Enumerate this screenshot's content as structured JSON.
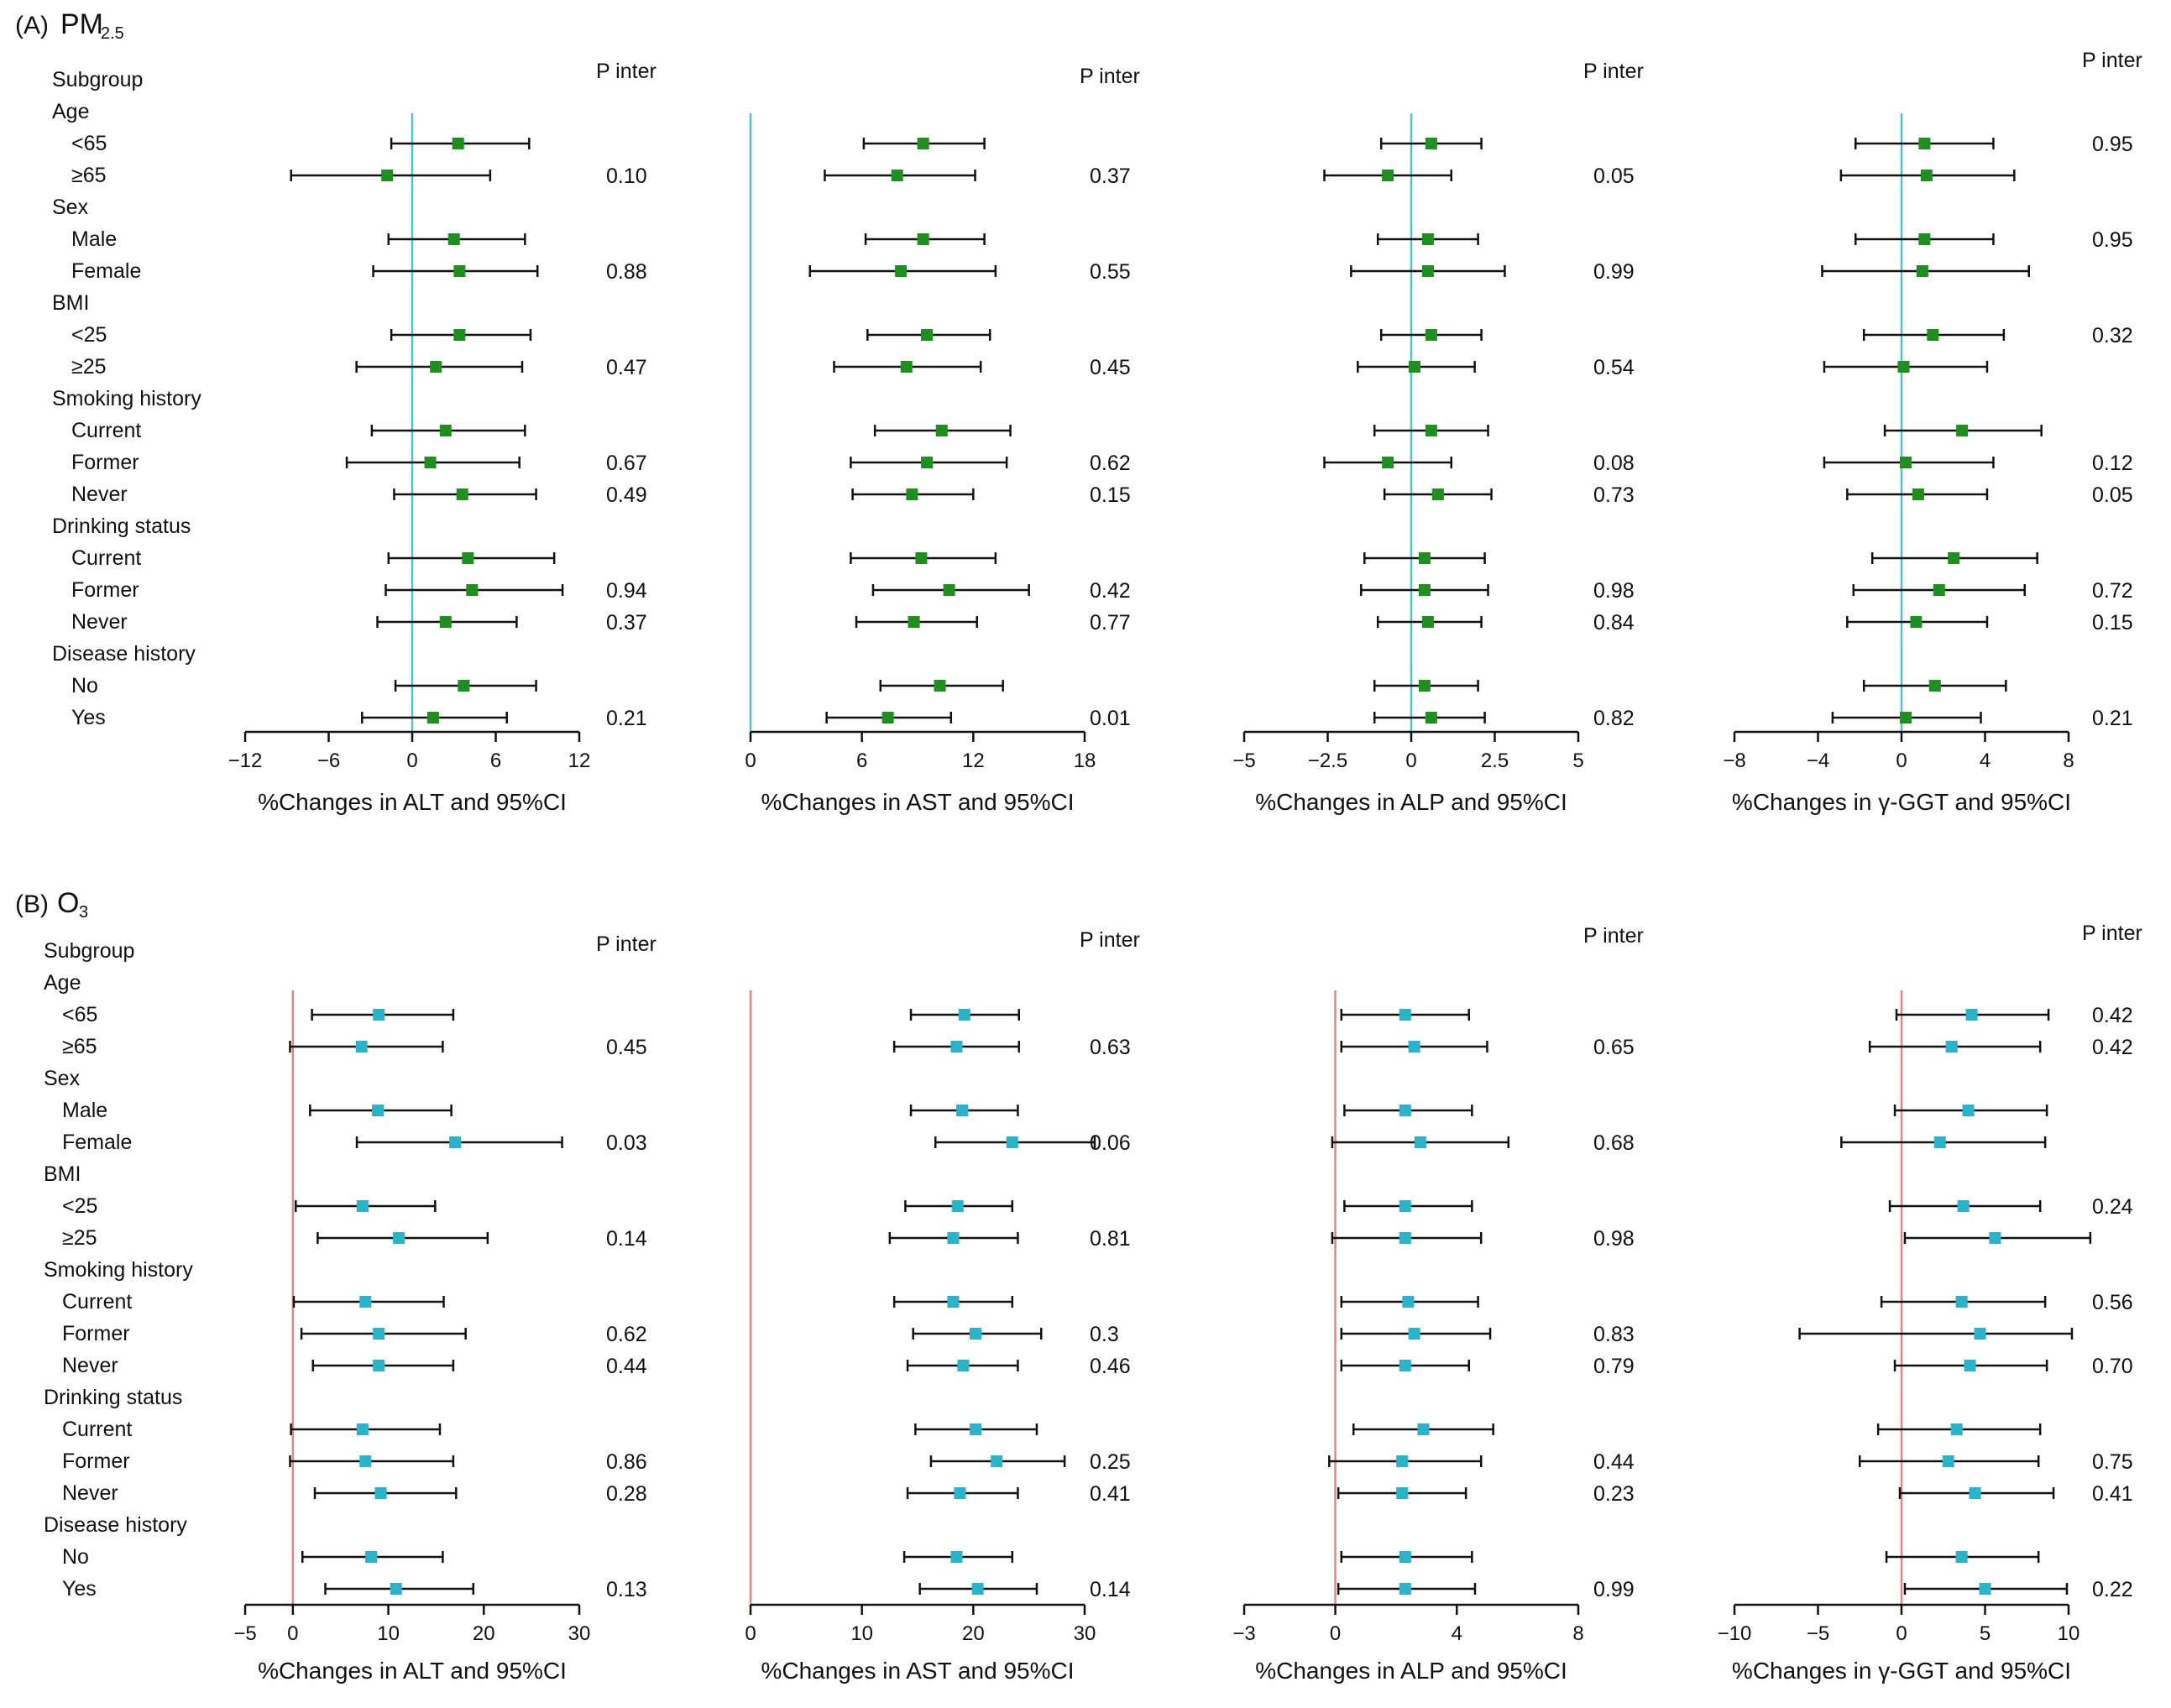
{
  "figure": {
    "row_labels": [
      "Subgroup",
      "Age",
      "<65",
      "≥65",
      "Sex",
      "Male",
      "Female",
      "BMI",
      "<25",
      "≥25",
      "Smoking history",
      "Current",
      "Former",
      "Never",
      "Drinking status",
      "Current",
      "Former",
      "Never",
      "Disease history",
      "No",
      "Yes"
    ],
    "p_header": "P inter",
    "panels": [
      {
        "tag": "(A)",
        "pollutant": "PM",
        "subscript": "2.5",
        "ci_color": "#4ec3c8",
        "marker_color": "#1f8f1f"
      },
      {
        "tag": "(B)",
        "pollutant": "O",
        "subscript": "3",
        "ci_color": "#f08080",
        "marker_color": "#2bb3c9"
      }
    ]
  },
  "chart_data": [
    {
      "type": "forest",
      "panel": "A",
      "title": "%Changes in ALT and 95%CI",
      "xlim": [
        -12,
        12
      ],
      "ticks": [
        -12,
        -6,
        0,
        6,
        12
      ],
      "tick_labels": [
        "−12",
        "−6",
        "0",
        "6",
        "12"
      ],
      "est": [
        3.3,
        -1.8,
        3.0,
        3.4,
        3.4,
        1.7,
        2.4,
        1.3,
        3.6,
        4.0,
        4.3,
        2.4,
        3.7,
        1.5
      ],
      "lo": [
        -1.5,
        -8.7,
        -1.7,
        -2.8,
        -1.5,
        -4.0,
        -2.9,
        -4.7,
        -1.3,
        -1.7,
        -1.9,
        -2.5,
        -1.2,
        -3.6
      ],
      "hi": [
        8.4,
        5.6,
        8.1,
        9.0,
        8.5,
        7.9,
        8.1,
        7.7,
        8.9,
        10.2,
        10.8,
        7.5,
        8.9,
        6.8
      ],
      "p": [
        "",
        "0.10",
        "",
        "0.88",
        "",
        "0.47",
        "",
        "0.67",
        "0.49",
        "",
        "0.94",
        "0.37",
        "",
        "0.21"
      ]
    },
    {
      "type": "forest",
      "panel": "A",
      "title": "%Changes in AST and 95%CI",
      "xlim": [
        0,
        18
      ],
      "ticks": [
        0,
        6,
        12,
        18
      ],
      "tick_labels": [
        "0",
        "6",
        "12",
        "18"
      ],
      "est": [
        9.3,
        7.9,
        9.3,
        8.1,
        9.5,
        8.4,
        10.3,
        9.5,
        8.7,
        9.2,
        10.7,
        8.8,
        10.2,
        7.4
      ],
      "lo": [
        6.1,
        4.0,
        6.2,
        3.2,
        6.3,
        4.5,
        6.7,
        5.4,
        5.5,
        5.4,
        6.6,
        5.7,
        7.0,
        4.1
      ],
      "hi": [
        12.6,
        12.1,
        12.6,
        13.2,
        12.9,
        12.4,
        14.0,
        13.8,
        12.0,
        13.2,
        15.0,
        12.2,
        13.6,
        10.8
      ],
      "p": [
        "",
        "0.37",
        "",
        "0.55",
        "",
        "0.45",
        "",
        "0.62",
        "0.15",
        "",
        "0.42",
        "0.77",
        "",
        "0.01"
      ]
    },
    {
      "type": "forest",
      "panel": "A",
      "title": "%Changes in ALP and 95%CI",
      "xlim": [
        -5,
        5
      ],
      "ticks": [
        -5,
        -2.5,
        0,
        2.5,
        5
      ],
      "tick_labels": [
        "−5",
        "−2.5",
        "0",
        "2.5",
        "5"
      ],
      "est": [
        0.6,
        -0.7,
        0.5,
        0.5,
        0.6,
        0.1,
        0.6,
        -0.7,
        0.8,
        0.4,
        0.4,
        0.5,
        0.4,
        0.6
      ],
      "lo": [
        -0.9,
        -2.6,
        -1.0,
        -1.8,
        -0.9,
        -1.6,
        -1.1,
        -2.6,
        -0.8,
        -1.4,
        -1.5,
        -1.0,
        -1.1,
        -1.1
      ],
      "hi": [
        2.1,
        1.2,
        2.0,
        2.8,
        2.1,
        1.9,
        2.3,
        1.2,
        2.4,
        2.2,
        2.3,
        2.1,
        2.0,
        2.2
      ],
      "p": [
        "",
        "0.05",
        "",
        "0.99",
        "",
        "0.54",
        "",
        "0.08",
        "0.73",
        "",
        "0.98",
        "0.84",
        "",
        "0.82"
      ]
    },
    {
      "type": "forest",
      "panel": "A",
      "title": "%Changes in γ-GGT and 95%CI",
      "xlim": [
        -8,
        8
      ],
      "ticks": [
        -8,
        -4,
        0,
        4,
        8
      ],
      "tick_labels": [
        "−8",
        "−4",
        "0",
        "4",
        "8"
      ],
      "est": [
        1.1,
        1.2,
        1.1,
        1.0,
        1.5,
        0.1,
        2.9,
        0.2,
        0.8,
        2.5,
        1.8,
        0.7,
        1.6,
        0.2
      ],
      "lo": [
        -2.2,
        -2.9,
        -2.2,
        -3.8,
        -1.8,
        -3.7,
        -0.8,
        -3.7,
        -2.6,
        -1.4,
        -2.3,
        -2.6,
        -1.8,
        -3.3
      ],
      "hi": [
        4.4,
        5.4,
        4.4,
        6.1,
        4.9,
        4.1,
        6.7,
        4.4,
        4.1,
        6.5,
        5.9,
        4.1,
        5.0,
        3.8
      ],
      "p": [
        "0.95",
        "",
        "0.95",
        "",
        "0.32",
        "",
        "",
        "0.12",
        "0.05",
        "",
        "0.72",
        "0.15",
        "",
        "0.21"
      ]
    },
    {
      "type": "forest",
      "panel": "B",
      "title": "%Changes in ALT and 95%CI",
      "xlim": [
        -5,
        30
      ],
      "ticks": [
        -5,
        0,
        10,
        20,
        30
      ],
      "tick_labels": [
        "−5",
        "0",
        "10",
        "20",
        "30"
      ],
      "est": [
        9.0,
        7.2,
        8.9,
        17.0,
        7.3,
        11.1,
        7.6,
        9.0,
        9.0,
        7.3,
        7.6,
        9.2,
        8.2,
        10.8
      ],
      "lo": [
        2.0,
        -0.3,
        1.8,
        6.7,
        0.3,
        2.6,
        0.1,
        0.9,
        2.1,
        -0.2,
        -0.3,
        2.3,
        1.0,
        3.4
      ],
      "hi": [
        16.8,
        15.7,
        16.6,
        28.2,
        14.9,
        20.4,
        15.8,
        18.1,
        16.8,
        15.4,
        16.8,
        17.1,
        15.7,
        18.9
      ],
      "p": [
        "",
        "0.45",
        "",
        "0.03",
        "",
        "0.14",
        "",
        "0.62",
        "0.44",
        "",
        "0.86",
        "0.28",
        "",
        "0.13"
      ]
    },
    {
      "type": "forest",
      "panel": "B",
      "title": "%Changes in AST and 95%CI",
      "xlim": [
        0,
        30
      ],
      "ticks": [
        0,
        10,
        20,
        30
      ],
      "tick_labels": [
        "0",
        "10",
        "20",
        "30"
      ],
      "est": [
        19.2,
        18.5,
        19.0,
        23.5,
        18.6,
        18.2,
        18.2,
        20.2,
        19.1,
        20.2,
        22.1,
        18.8,
        18.5,
        20.4
      ],
      "lo": [
        14.4,
        12.9,
        14.4,
        16.6,
        13.9,
        12.5,
        12.9,
        14.6,
        14.1,
        14.8,
        16.2,
        14.1,
        13.8,
        15.2
      ],
      "hi": [
        24.1,
        24.1,
        24.0,
        30.9,
        23.5,
        24.0,
        23.5,
        26.1,
        24.0,
        25.7,
        28.2,
        24.0,
        23.5,
        25.7
      ],
      "p": [
        "",
        "0.63",
        "",
        "0.06",
        "",
        "0.81",
        "",
        "0.3",
        "0.46",
        "",
        "0.25",
        "0.41",
        "",
        "0.14"
      ]
    },
    {
      "type": "forest",
      "panel": "B",
      "title": "%Changes in ALP and 95%CI",
      "xlim": [
        -3,
        8
      ],
      "ticks": [
        -3,
        0,
        4,
        8
      ],
      "tick_labels": [
        "−3",
        "0",
        "4",
        "8"
      ],
      "est": [
        2.3,
        2.6,
        2.3,
        2.8,
        2.3,
        2.3,
        2.4,
        2.6,
        2.3,
        2.9,
        2.2,
        2.2,
        2.3,
        2.3
      ],
      "lo": [
        0.2,
        0.2,
        0.3,
        -0.1,
        0.3,
        -0.1,
        0.2,
        0.2,
        0.2,
        0.6,
        -0.2,
        0.1,
        0.2,
        0.1
      ],
      "hi": [
        4.4,
        5.0,
        4.5,
        5.7,
        4.5,
        4.8,
        4.7,
        5.1,
        4.4,
        5.2,
        4.8,
        4.3,
        4.5,
        4.6
      ],
      "p": [
        "",
        "0.65",
        "",
        "0.68",
        "",
        "0.98",
        "",
        "0.83",
        "0.79",
        "",
        "0.44",
        "0.23",
        "",
        "0.99"
      ]
    },
    {
      "type": "forest",
      "panel": "B",
      "title": "%Changes in γ-GGT and 95%CI",
      "xlim": [
        -10,
        10
      ],
      "ticks": [
        -10,
        -5,
        0,
        5,
        10
      ],
      "tick_labels": [
        "−10",
        "−5",
        "0",
        "5",
        "10"
      ],
      "est": [
        4.2,
        3.0,
        4.0,
        2.3,
        3.7,
        5.6,
        3.6,
        4.7,
        4.1,
        3.3,
        2.8,
        4.4,
        3.6,
        5.0
      ],
      "lo": [
        -0.3,
        -1.9,
        -0.4,
        -3.6,
        -0.7,
        0.2,
        -1.2,
        -6.1,
        -0.4,
        -1.4,
        -2.5,
        -0.1,
        -0.9,
        0.2
      ],
      "hi": [
        8.8,
        8.3,
        8.7,
        8.6,
        8.3,
        11.3,
        8.6,
        10.2,
        8.7,
        8.3,
        8.2,
        9.1,
        8.2,
        9.9
      ],
      "p": [
        "0.42",
        "0.42",
        "",
        "",
        "0.24",
        "",
        "0.56",
        "",
        "0.70",
        "",
        "0.75",
        "0.41",
        "",
        "0.22"
      ]
    }
  ]
}
